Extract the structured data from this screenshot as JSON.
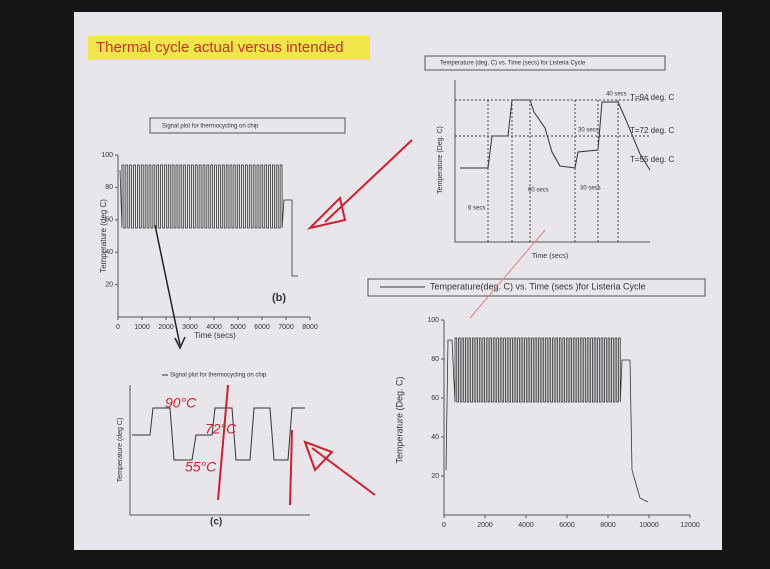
{
  "slide": {
    "title": "Thermal cycle actual versus intended",
    "plot_b": {
      "legend": "Signal plot for thermocycling on chip",
      "y_label": "Temperature (deg C)",
      "x_label": "Time (secs)",
      "tag": "(b)",
      "xticks": [
        0,
        1000,
        2000,
        3000,
        4000,
        5000,
        6000,
        7000,
        8000
      ],
      "yticks": [
        20,
        40,
        60,
        80,
        100
      ]
    },
    "plot_a": {
      "legend": "Temperature (deg. C) vs. Time (secs) for Listeria Cycle",
      "y_label": "Temperature (Deg. C)",
      "x_label": "Time (secs)",
      "annotations": [
        "40 secs",
        "T=94 deg. C",
        "30 secs",
        "T=72 deg. C",
        "T=55 deg. C",
        "60 secs",
        "30 secs",
        "6 secs"
      ]
    },
    "plot_c": {
      "legend": "Signal plot for thermocycling on chip",
      "y_label": "Temperature (deg C)",
      "tag": "(c)",
      "handwriting": [
        "90°C",
        "72°C",
        "55°C"
      ]
    },
    "plot_d": {
      "legend": "Temperature(deg. C) vs. Time (secs )for Listeria Cycle",
      "y_label": "Temperature (Deg. C)",
      "xticks": [
        0,
        2000,
        4000,
        6000,
        8000,
        10000,
        12000
      ],
      "yticks": [
        20,
        40,
        60,
        80,
        100
      ]
    }
  }
}
